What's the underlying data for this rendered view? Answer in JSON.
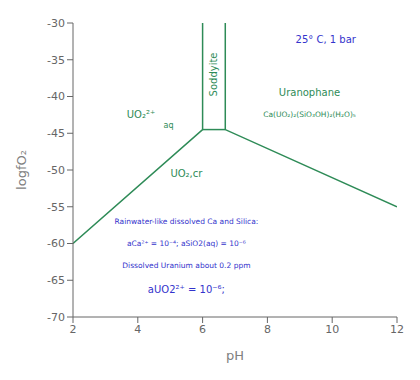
{
  "chart_data": {
    "type": "line",
    "xlabel": "pH",
    "ylabel": "logfO₂",
    "xlim": [
      2,
      12
    ],
    "ylim": [
      -70,
      -30
    ],
    "xticks": [
      2,
      4,
      6,
      8,
      10,
      12
    ],
    "yticks": [
      -70,
      -65,
      -60,
      -55,
      -50,
      -45,
      -40,
      -35,
      -30
    ],
    "grid": false,
    "series": [
      {
        "x": [
          2.0,
          6.0,
          6.0
        ],
        "values": [
          -60.0,
          -44.5,
          -30
        ],
        "color": "#2e8b57"
      },
      {
        "x": [
          12.0,
          6.7,
          6.7
        ],
        "values": [
          -55.0,
          -44.5,
          -30
        ],
        "color": "#2e8b57"
      },
      {
        "x": [
          6.0,
          6.7
        ],
        "values": [
          -44.5,
          -44.5
        ],
        "color": "#2e8b57"
      }
    ],
    "annotations": [
      {
        "text": "25° C, 1 bar",
        "x": 9.8,
        "y": -32.2,
        "color": "#3333cc"
      },
      {
        "text": "Soddyite",
        "x": 6.35,
        "y": -37.0,
        "color": "#2e8b57"
      },
      {
        "text": "Uranophane",
        "x": 9.3,
        "y": -39.5,
        "color": "#2e8b57"
      },
      {
        "text": "Ca(UO₂)₂(SiO₃OH)₂(H₂O)₅",
        "x": 9.3,
        "y": -42.5,
        "color": "#2e8b57"
      },
      {
        "text": "UO₂²⁺",
        "x": 4.1,
        "y": -42.5,
        "color": "#2e8b57"
      },
      {
        "text": "aq",
        "x": 4.95,
        "y": -43.9,
        "color": "#2e8b57"
      },
      {
        "text": "UO₂,cr",
        "x": 5.5,
        "y": -50.5,
        "color": "#2e8b57"
      },
      {
        "text": "Rainwater-like dissolved Ca and Silica:",
        "x": 5.5,
        "y": -57.0,
        "color": "#3333cc"
      },
      {
        "text": "aCa²⁺ = 10⁻⁴; aSiO2(aq) = 10⁻⁶",
        "x": 5.5,
        "y": -60.0,
        "color": "#3333cc"
      },
      {
        "text": "Dissolved Uranium about 0.2 ppm",
        "x": 5.5,
        "y": -63.0,
        "color": "#3333cc"
      },
      {
        "text": "aUO2²⁺ = 10⁻⁶;",
        "x": 5.5,
        "y": -66.2,
        "color": "#3333cc"
      }
    ]
  }
}
